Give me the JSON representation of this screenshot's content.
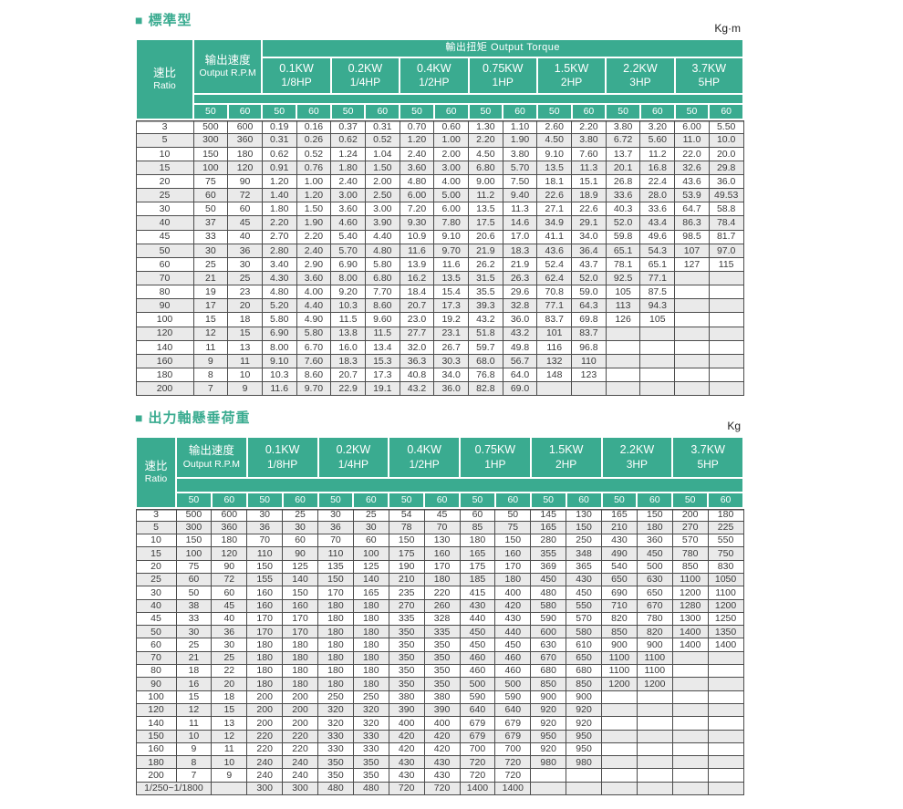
{
  "colors": {
    "header_green": "#3aab90",
    "alt_row": "#eaeaea",
    "border": "#4c4c4c"
  },
  "tables": [
    {
      "bullet": "■",
      "title": "標準型",
      "unit": "Kg·m",
      "ratio_header": {
        "zh": "速比",
        "en": "Ratio"
      },
      "speed_header": {
        "zh": "输出速度",
        "en": "Output R.P.M"
      },
      "torque_header": "輸出扭矩 Output Torque",
      "hz_labels": [
        "50",
        "60"
      ],
      "power_columns": [
        {
          "kw": "0.1KW",
          "hp": "1/8HP"
        },
        {
          "kw": "0.2KW",
          "hp": "1/4HP"
        },
        {
          "kw": "0.4KW",
          "hp": "1/2HP"
        },
        {
          "kw": "0.75KW",
          "hp": "1HP"
        },
        {
          "kw": "1.5KW",
          "hp": "2HP"
        },
        {
          "kw": "2.2KW",
          "hp": "3HP"
        },
        {
          "kw": "3.7KW",
          "hp": "5HP"
        }
      ],
      "rows": [
        {
          "ratio": "3",
          "cells": [
            "500",
            "600",
            "0.19",
            "0.16",
            "0.37",
            "0.31",
            "0.70",
            "0.60",
            "1.30",
            "1.10",
            "2.60",
            "2.20",
            "3.80",
            "3.20",
            "6.00",
            "5.50"
          ]
        },
        {
          "ratio": "5",
          "cells": [
            "300",
            "360",
            "0.31",
            "0.26",
            "0.62",
            "0.52",
            "1.20",
            "1.00",
            "2.20",
            "1.90",
            "4.50",
            "3.80",
            "6.72",
            "5.60",
            "11.0",
            "10.0"
          ]
        },
        {
          "ratio": "10",
          "cells": [
            "150",
            "180",
            "0.62",
            "0.52",
            "1.24",
            "1.04",
            "2.40",
            "2.00",
            "4.50",
            "3.80",
            "9.10",
            "7.60",
            "13.7",
            "11.2",
            "22.0",
            "20.0"
          ]
        },
        {
          "ratio": "15",
          "cells": [
            "100",
            "120",
            "0.91",
            "0.76",
            "1.80",
            "1.50",
            "3.60",
            "3.00",
            "6.80",
            "5.70",
            "13.5",
            "11.3",
            "20.1",
            "16.8",
            "32.6",
            "29.8"
          ]
        },
        {
          "ratio": "20",
          "cells": [
            "75",
            "90",
            "1.20",
            "1.00",
            "2.40",
            "2.00",
            "4.80",
            "4.00",
            "9.00",
            "7.50",
            "18.1",
            "15.1",
            "26.8",
            "22.4",
            "43.6",
            "36.0"
          ]
        },
        {
          "ratio": "25",
          "cells": [
            "60",
            "72",
            "1.40",
            "1.20",
            "3.00",
            "2.50",
            "6.00",
            "5.00",
            "11.2",
            "9.40",
            "22.6",
            "18.9",
            "33.6",
            "28.0",
            "53.9",
            "49.53"
          ]
        },
        {
          "ratio": "30",
          "cells": [
            "50",
            "60",
            "1.80",
            "1.50",
            "3.60",
            "3.00",
            "7.20",
            "6.00",
            "13.5",
            "11.3",
            "27.1",
            "22.6",
            "40.3",
            "33.6",
            "64.7",
            "58.8"
          ]
        },
        {
          "ratio": "40",
          "cells": [
            "37",
            "45",
            "2.20",
            "1.90",
            "4.60",
            "3.90",
            "9.30",
            "7.80",
            "17.5",
            "14.6",
            "34.9",
            "29.1",
            "52.0",
            "43.4",
            "86.3",
            "78.4"
          ]
        },
        {
          "ratio": "45",
          "cells": [
            "33",
            "40",
            "2.70",
            "2.20",
            "5.40",
            "4.40",
            "10.9",
            "9.10",
            "20.6",
            "17.0",
            "41.1",
            "34.0",
            "59.8",
            "49.6",
            "98.5",
            "81.7"
          ]
        },
        {
          "ratio": "50",
          "cells": [
            "30",
            "36",
            "2.80",
            "2.40",
            "5.70",
            "4.80",
            "11.6",
            "9.70",
            "21.9",
            "18.3",
            "43.6",
            "36.4",
            "65.1",
            "54.3",
            "107",
            "97.0"
          ]
        },
        {
          "ratio": "60",
          "cells": [
            "25",
            "30",
            "3.40",
            "2.90",
            "6.90",
            "5.80",
            "13.9",
            "11.6",
            "26.2",
            "21.9",
            "52.4",
            "43.7",
            "78.1",
            "65.1",
            "127",
            "115"
          ]
        },
        {
          "ratio": "70",
          "cells": [
            "21",
            "25",
            "4.30",
            "3.60",
            "8.00",
            "6.80",
            "16.2",
            "13.5",
            "31.5",
            "26.3",
            "62.4",
            "52.0",
            "92.5",
            "77.1",
            "",
            ""
          ]
        },
        {
          "ratio": "80",
          "cells": [
            "19",
            "23",
            "4.80",
            "4.00",
            "9.20",
            "7.70",
            "18.4",
            "15.4",
            "35.5",
            "29.6",
            "70.8",
            "59.0",
            "105",
            "87.5",
            "",
            ""
          ]
        },
        {
          "ratio": "90",
          "cells": [
            "17",
            "20",
            "5.20",
            "4.40",
            "10.3",
            "8.60",
            "20.7",
            "17.3",
            "39.3",
            "32.8",
            "77.1",
            "64.3",
            "113",
            "94.3",
            "",
            ""
          ]
        },
        {
          "ratio": "100",
          "cells": [
            "15",
            "18",
            "5.80",
            "4.90",
            "11.5",
            "9.60",
            "23.0",
            "19.2",
            "43.2",
            "36.0",
            "83.7",
            "69.8",
            "126",
            "105",
            "",
            ""
          ]
        },
        {
          "ratio": "120",
          "cells": [
            "12",
            "15",
            "6.90",
            "5.80",
            "13.8",
            "11.5",
            "27.7",
            "23.1",
            "51.8",
            "43.2",
            "101",
            "83.7",
            "",
            "",
            "",
            ""
          ]
        },
        {
          "ratio": "140",
          "cells": [
            "11",
            "13",
            "8.00",
            "6.70",
            "16.0",
            "13.4",
            "32.0",
            "26.7",
            "59.7",
            "49.8",
            "116",
            "96.8",
            "",
            "",
            "",
            ""
          ]
        },
        {
          "ratio": "160",
          "cells": [
            "9",
            "11",
            "9.10",
            "7.60",
            "18.3",
            "15.3",
            "36.3",
            "30.3",
            "68.0",
            "56.7",
            "132",
            "110",
            "",
            "",
            "",
            ""
          ]
        },
        {
          "ratio": "180",
          "cells": [
            "8",
            "10",
            "10.3",
            "8.60",
            "20.7",
            "17.3",
            "40.8",
            "34.0",
            "76.8",
            "64.0",
            "148",
            "123",
            "",
            "",
            "",
            ""
          ]
        },
        {
          "ratio": "200",
          "cells": [
            "7",
            "9",
            "11.6",
            "9.70",
            "22.9",
            "19.1",
            "43.2",
            "36.0",
            "82.8",
            "69.0",
            "",
            "",
            "",
            "",
            "",
            ""
          ]
        }
      ]
    },
    {
      "bullet": "■",
      "title": "出力軸懸垂荷重",
      "unit": "Kg",
      "ratio_header": {
        "zh": "速比",
        "en": "Ratio"
      },
      "speed_header": {
        "zh": "输出速度",
        "en": "Output R.P.M"
      },
      "torque_header": null,
      "hz_labels": [
        "50",
        "60"
      ],
      "power_columns": [
        {
          "kw": "0.1KW",
          "hp": "1/8HP"
        },
        {
          "kw": "0.2KW",
          "hp": "1/4HP"
        },
        {
          "kw": "0.4KW",
          "hp": "1/2HP"
        },
        {
          "kw": "0.75KW",
          "hp": "1HP"
        },
        {
          "kw": "1.5KW",
          "hp": "2HP"
        },
        {
          "kw": "2.2KW",
          "hp": "3HP"
        },
        {
          "kw": "3.7KW",
          "hp": "5HP"
        }
      ],
      "rows": [
        {
          "ratio": "3",
          "cells": [
            "500",
            "600",
            "30",
            "25",
            "30",
            "25",
            "54",
            "45",
            "60",
            "50",
            "145",
            "130",
            "165",
            "150",
            "200",
            "180"
          ]
        },
        {
          "ratio": "5",
          "cells": [
            "300",
            "360",
            "36",
            "30",
            "36",
            "30",
            "78",
            "70",
            "85",
            "75",
            "165",
            "150",
            "210",
            "180",
            "270",
            "225"
          ]
        },
        {
          "ratio": "10",
          "cells": [
            "150",
            "180",
            "70",
            "60",
            "70",
            "60",
            "150",
            "130",
            "180",
            "150",
            "280",
            "250",
            "430",
            "360",
            "570",
            "550"
          ]
        },
        {
          "ratio": "15",
          "cells": [
            "100",
            "120",
            "110",
            "90",
            "110",
            "100",
            "175",
            "160",
            "165",
            "160",
            "355",
            "348",
            "490",
            "450",
            "780",
            "750"
          ]
        },
        {
          "ratio": "20",
          "cells": [
            "75",
            "90",
            "150",
            "125",
            "135",
            "125",
            "190",
            "170",
            "175",
            "170",
            "369",
            "365",
            "540",
            "500",
            "850",
            "830"
          ]
        },
        {
          "ratio": "25",
          "cells": [
            "60",
            "72",
            "155",
            "140",
            "150",
            "140",
            "210",
            "180",
            "185",
            "180",
            "450",
            "430",
            "650",
            "630",
            "1100",
            "1050"
          ]
        },
        {
          "ratio": "30",
          "cells": [
            "50",
            "60",
            "160",
            "150",
            "170",
            "165",
            "235",
            "220",
            "415",
            "400",
            "480",
            "450",
            "690",
            "650",
            "1200",
            "1100"
          ]
        },
        {
          "ratio": "40",
          "cells": [
            "38",
            "45",
            "160",
            "160",
            "180",
            "180",
            "270",
            "260",
            "430",
            "420",
            "580",
            "550",
            "710",
            "670",
            "1280",
            "1200"
          ]
        },
        {
          "ratio": "45",
          "cells": [
            "33",
            "40",
            "170",
            "170",
            "180",
            "180",
            "335",
            "328",
            "440",
            "430",
            "590",
            "570",
            "820",
            "780",
            "1300",
            "1250"
          ]
        },
        {
          "ratio": "50",
          "cells": [
            "30",
            "36",
            "170",
            "170",
            "180",
            "180",
            "350",
            "335",
            "450",
            "440",
            "600",
            "580",
            "850",
            "820",
            "1400",
            "1350"
          ]
        },
        {
          "ratio": "60",
          "cells": [
            "25",
            "30",
            "180",
            "180",
            "180",
            "180",
            "350",
            "350",
            "450",
            "450",
            "630",
            "610",
            "900",
            "900",
            "1400",
            "1400"
          ]
        },
        {
          "ratio": "70",
          "cells": [
            "21",
            "25",
            "180",
            "180",
            "180",
            "180",
            "350",
            "350",
            "460",
            "460",
            "670",
            "650",
            "1100",
            "1100",
            "",
            ""
          ]
        },
        {
          "ratio": "80",
          "cells": [
            "18",
            "22",
            "180",
            "180",
            "180",
            "180",
            "350",
            "350",
            "460",
            "460",
            "680",
            "680",
            "1100",
            "1100",
            "",
            ""
          ]
        },
        {
          "ratio": "90",
          "cells": [
            "16",
            "20",
            "180",
            "180",
            "180",
            "180",
            "350",
            "350",
            "500",
            "500",
            "850",
            "850",
            "1200",
            "1200",
            "",
            ""
          ]
        },
        {
          "ratio": "100",
          "cells": [
            "15",
            "18",
            "200",
            "200",
            "250",
            "250",
            "380",
            "380",
            "590",
            "590",
            "900",
            "900",
            "",
            "",
            "",
            ""
          ]
        },
        {
          "ratio": "120",
          "cells": [
            "12",
            "15",
            "200",
            "200",
            "320",
            "320",
            "390",
            "390",
            "640",
            "640",
            "920",
            "920",
            "",
            "",
            "",
            ""
          ]
        },
        {
          "ratio": "140",
          "cells": [
            "11",
            "13",
            "200",
            "200",
            "320",
            "320",
            "400",
            "400",
            "679",
            "679",
            "920",
            "920",
            "",
            "",
            "",
            ""
          ]
        },
        {
          "ratio": "150",
          "cells": [
            "10",
            "12",
            "220",
            "220",
            "330",
            "330",
            "420",
            "420",
            "679",
            "679",
            "950",
            "950",
            "",
            "",
            "",
            ""
          ]
        },
        {
          "ratio": "160",
          "cells": [
            "9",
            "11",
            "220",
            "220",
            "330",
            "330",
            "420",
            "420",
            "700",
            "700",
            "920",
            "950",
            "",
            "",
            "",
            ""
          ]
        },
        {
          "ratio": "180",
          "cells": [
            "8",
            "10",
            "240",
            "240",
            "350",
            "350",
            "430",
            "430",
            "720",
            "720",
            "980",
            "980",
            "",
            "",
            "",
            ""
          ]
        },
        {
          "ratio": "200",
          "cells": [
            "7",
            "9",
            "240",
            "240",
            "350",
            "350",
            "430",
            "430",
            "720",
            "720",
            "",
            "",
            "",
            "",
            "",
            ""
          ]
        },
        {
          "ratio": "1/250~1/1800",
          "ratio_colspan": 2,
          "cells": [
            "",
            "300",
            "300",
            "480",
            "480",
            "720",
            "720",
            "1400",
            "1400",
            "",
            "",
            "",
            "",
            "",
            ""
          ]
        }
      ]
    }
  ]
}
